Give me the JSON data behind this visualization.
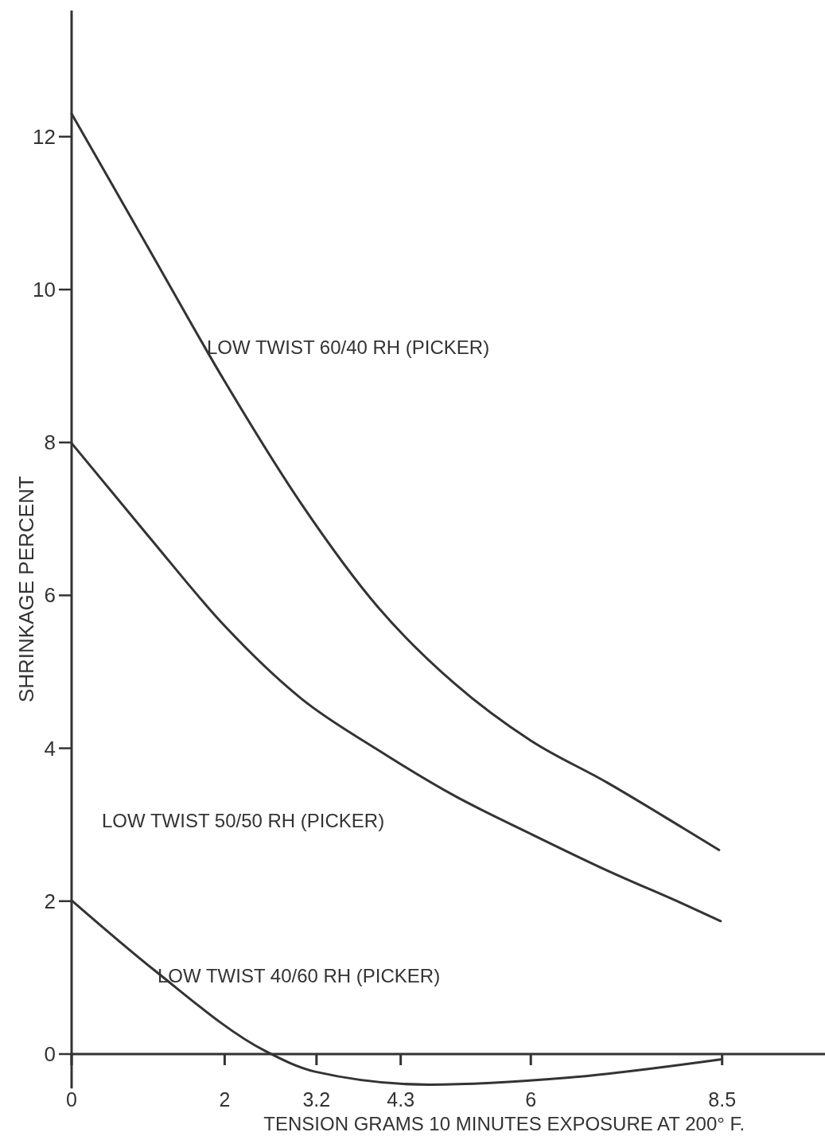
{
  "chart_data": {
    "type": "line",
    "xlabel": "TENSION GRAMS 10 MINUTES EXPOSURE AT 200° F.",
    "ylabel": "SHRINKAGE PERCENT",
    "xlim": [
      0,
      9.85
    ],
    "ylim": [
      -0.45,
      13.65
    ],
    "xticks": [
      0,
      2,
      3.2,
      4.3,
      6,
      8.5
    ],
    "yticks": [
      0,
      2,
      4,
      6,
      8,
      10,
      12
    ],
    "grid": false,
    "legend": false,
    "marker": "none",
    "line_style": "solid",
    "series": [
      {
        "name": "LOW TWIST 60/40 RH (PICKER)",
        "color": "#333333",
        "x": [
          0,
          1,
          2,
          3,
          4,
          5,
          6,
          7,
          8,
          8.46
        ],
        "values": [
          12.3,
          10.55,
          8.8,
          7.2,
          5.85,
          4.85,
          4.1,
          3.55,
          2.95,
          2.67
        ]
      },
      {
        "name": "LOW TWIST 50/50 RH (PICKER)",
        "color": "#333333",
        "x": [
          0,
          1,
          2,
          3,
          4,
          5,
          6,
          7,
          8,
          8.48
        ],
        "values": [
          7.99,
          6.78,
          5.6,
          4.65,
          3.98,
          3.38,
          2.88,
          2.4,
          1.96,
          1.74
        ]
      },
      {
        "name": "LOW TWIST 40/60 RH (PICKER)",
        "color": "#333333",
        "x": [
          0,
          1.09,
          2.53,
          3.18,
          4.68,
          6.47,
          8.48
        ],
        "values": [
          2.01,
          1.09,
          0.04,
          -0.23,
          -0.4,
          -0.31,
          -0.07
        ]
      }
    ]
  }
}
